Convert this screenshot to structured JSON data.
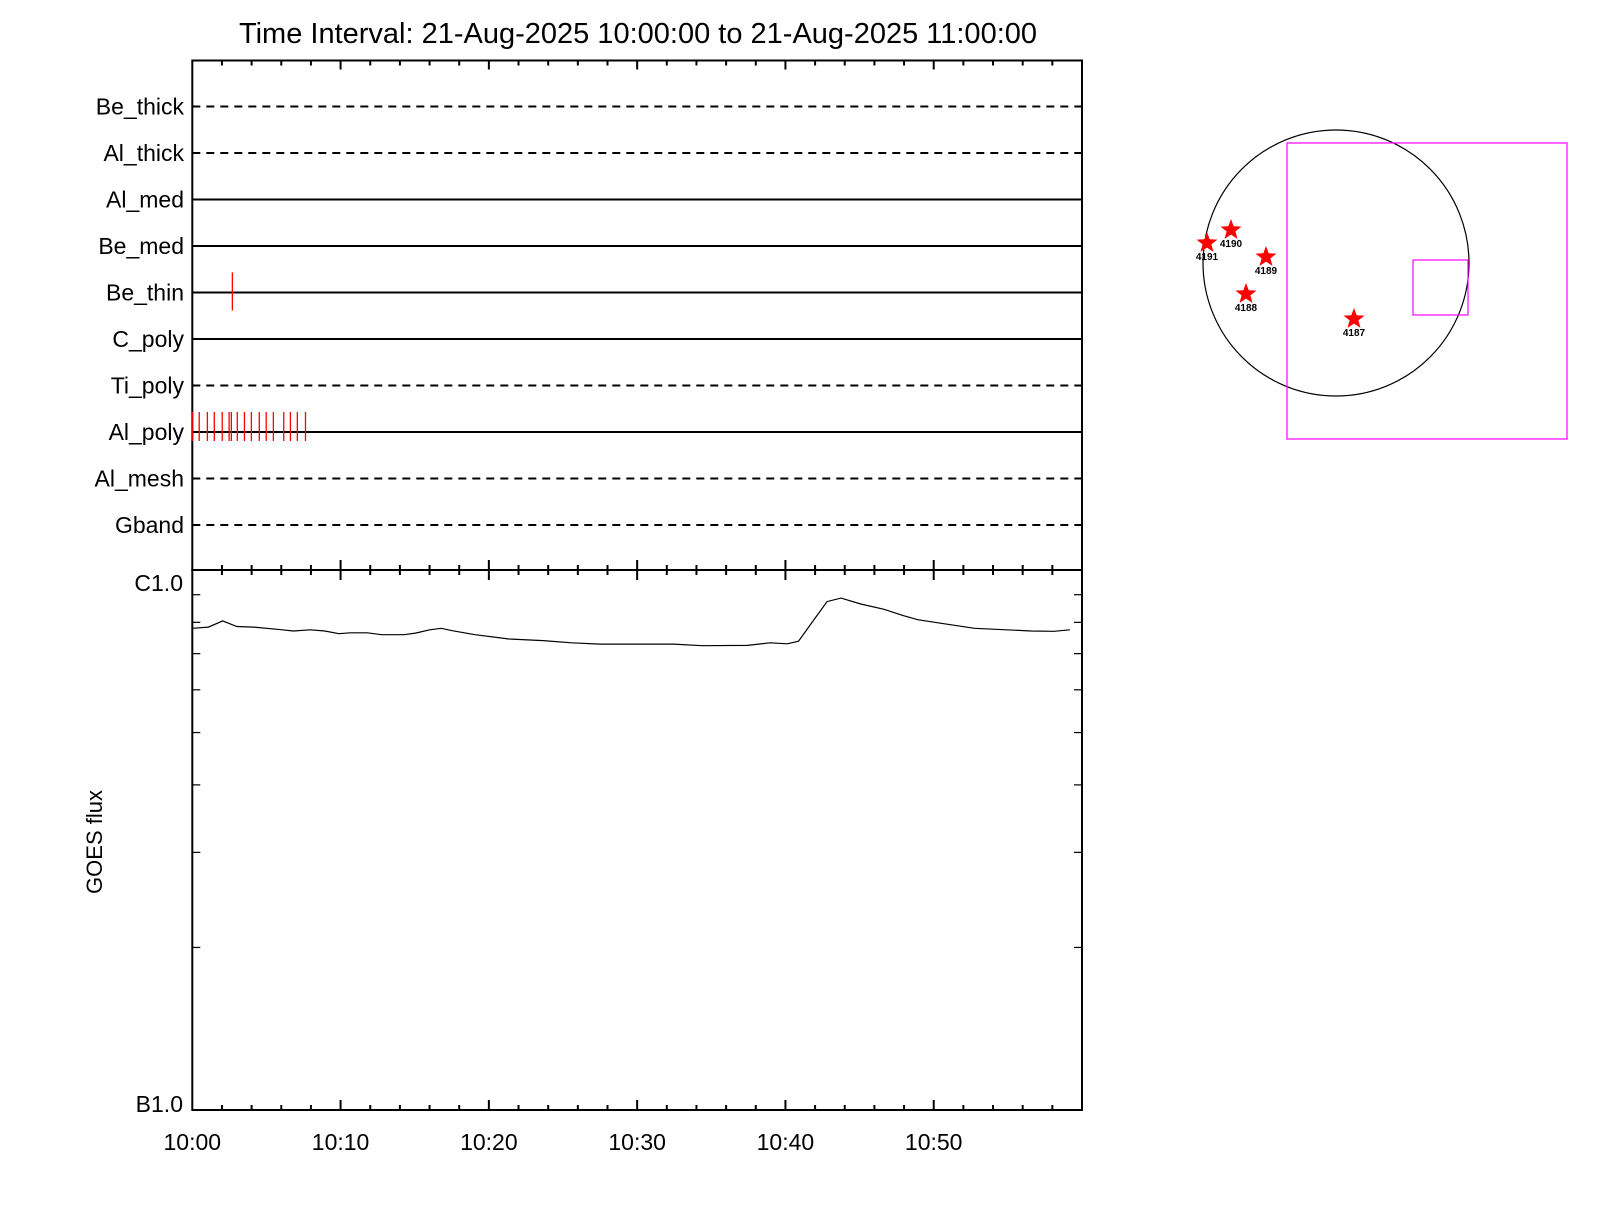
{
  "chart_data": [
    {
      "type": "timeline",
      "title": "Time Interval: 21-Aug-2025 10:00:00 to 21-Aug-2025 11:00:00",
      "xlim": [
        "10:00:00",
        "11:00:00"
      ],
      "rows": [
        {
          "label": "Be_thick",
          "line": "dashed",
          "events": []
        },
        {
          "label": "Al_thick",
          "line": "dashed",
          "events": []
        },
        {
          "label": "Al_med",
          "line": "solid",
          "events": []
        },
        {
          "label": "Be_med",
          "line": "solid",
          "events": []
        },
        {
          "label": "Be_thin",
          "line": "solid",
          "events": [
            "10:02:42"
          ]
        },
        {
          "label": "C_poly",
          "line": "solid",
          "events": []
        },
        {
          "label": "Ti_poly",
          "line": "dashed",
          "events": []
        },
        {
          "label": "Al_poly",
          "line": "solid",
          "events": [
            "10:00:00",
            "10:00:28",
            "10:01:01",
            "10:01:29",
            "10:02:01",
            "10:02:29",
            "10:02:38",
            "10:03:02",
            "10:03:31",
            "10:03:59",
            "10:04:31",
            "10:04:59",
            "10:05:28",
            "10:06:10",
            "10:06:37",
            "10:07:05",
            "10:07:38"
          ]
        },
        {
          "label": "Al_mesh",
          "line": "dashed",
          "events": []
        },
        {
          "label": "Gband",
          "line": "dashed",
          "events": []
        }
      ],
      "event_color": "#ff0000"
    },
    {
      "type": "line",
      "ylabel": "GOES flux",
      "yscale": "log",
      "ylim": [
        1e-07,
        1e-06
      ],
      "ytick_labels": [
        "B1.0",
        "C1.0"
      ],
      "xtick_labels": [
        "10:00",
        "10:10",
        "10:20",
        "10:30",
        "10:40",
        "10:50"
      ],
      "x": [
        "10:00:00",
        "10:01:05",
        "10:02:03",
        "10:03:00",
        "10:04:09",
        "10:06:04",
        "10:06:49",
        "10:07:58",
        "10:08:56",
        "10:09:53",
        "10:10:39",
        "10:11:48",
        "10:12:45",
        "10:14:17",
        "10:15:03",
        "10:16:01",
        "10:16:47",
        "10:17:32",
        "10:19:04",
        "10:21:22",
        "10:23:40",
        "10:25:35",
        "10:27:29",
        "10:32:28",
        "10:34:23",
        "10:37:26",
        "10:38:58",
        "10:40:07",
        "10:40:53",
        "10:42:48",
        "10:43:45",
        "10:45:05",
        "10:46:37",
        "10:47:58",
        "10:48:55",
        "10:50:27",
        "10:52:45",
        "10:56:35",
        "10:58:07",
        "10:59:11"
      ],
      "y": [
        7.8e-07,
        7.84e-07,
        8.05e-07,
        7.86e-07,
        7.84e-07,
        7.75e-07,
        7.71e-07,
        7.75e-07,
        7.71e-07,
        7.62e-07,
        7.65e-07,
        7.65e-07,
        7.59e-07,
        7.59e-07,
        7.64e-07,
        7.75e-07,
        7.8e-07,
        7.72e-07,
        7.59e-07,
        7.45e-07,
        7.4e-07,
        7.33e-07,
        7.29e-07,
        7.29e-07,
        7.24e-07,
        7.25e-07,
        7.33e-07,
        7.3e-07,
        7.38e-07,
        8.74e-07,
        8.87e-07,
        8.65e-07,
        8.46e-07,
        8.23e-07,
        8.09e-07,
        7.97e-07,
        7.8e-07,
        7.71e-07,
        7.7e-07,
        7.75e-07
      ],
      "line_color": "#000000"
    },
    {
      "type": "scatter",
      "description_free": true,
      "active_regions": [
        "4191",
        "4190",
        "4189",
        "4188",
        "4187"
      ],
      "marker_color": "#ff0000",
      "fov_color": "#ff00ff"
    }
  ]
}
